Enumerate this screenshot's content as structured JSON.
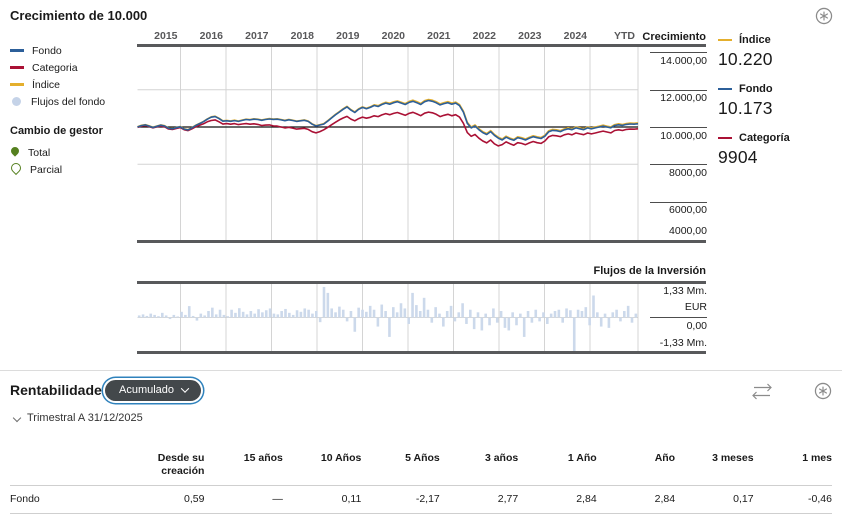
{
  "header": {
    "title": "Crecimiento de 10.000"
  },
  "colors": {
    "fondo": "#2c5f99",
    "categoria": "#aa1135",
    "indice": "#e4af2d",
    "flows": "#ccd9eb",
    "manager_green": "#55801f",
    "frame": "#58595b",
    "grid": "#d4d4d4",
    "baseline": "#111111",
    "pill_bg": "#43484b",
    "pill_ring": "#2f82bc",
    "icon_gray": "#8b8b8b"
  },
  "legend": {
    "items": [
      {
        "label": "Fondo",
        "type": "line",
        "color": "#2c5f99"
      },
      {
        "label": "Categoria",
        "type": "line",
        "color": "#aa1135"
      },
      {
        "label": "Índice",
        "type": "line",
        "color": "#e4af2d"
      },
      {
        "label": "Flujos del fondo",
        "type": "dot",
        "color": "#c5d3e8"
      }
    ],
    "manager_header": "Cambio de gestor",
    "manager_items": [
      {
        "label": "Total",
        "type": "pin-filled"
      },
      {
        "label": "Parcial",
        "type": "pin-hollow"
      }
    ]
  },
  "growth_axis": {
    "header": "Crecimiento",
    "tick_values": [
      14000,
      12000,
      10000,
      8000,
      6000,
      4000
    ],
    "tick_labels": [
      "14.000,00",
      "12.000,00",
      "10.000,00",
      "8000,00",
      "6000,00",
      "4000,00"
    ]
  },
  "summary": [
    {
      "label": "Índice",
      "value": "10.220",
      "color": "#e4af2d"
    },
    {
      "label": "Fondo",
      "value": "10.173",
      "color": "#2c5f99"
    },
    {
      "label": "Categoría",
      "value": "9904",
      "color": "#aa1135"
    }
  ],
  "flows_axis": {
    "header": "Flujos de la Inversión",
    "top": "1,33 Mm.",
    "unit": "EUR",
    "zero": "0,00",
    "bottom": "-1,33 Mm."
  },
  "rentabilidades": {
    "title": "Rentabilidades",
    "dropdown_value": "Acumulado",
    "period_note": "Trimestral A 31/12/2025",
    "table": {
      "columns": [
        "Desde su\ncreación",
        "15 años",
        "10 Años",
        "5 Años",
        "3 años",
        "1 Año",
        "Año",
        "3 meses",
        "1 mes"
      ],
      "rows": [
        {
          "label": "Fondo",
          "values": [
            "0,59",
            "—",
            "0,11",
            "-2,17",
            "2,77",
            "2,84",
            "2,84",
            "0,17",
            "-0,46"
          ]
        }
      ]
    }
  },
  "chart_data": [
    {
      "type": "line",
      "title": "Crecimiento de 10.000",
      "x_labels": [
        "2015",
        "2016",
        "2017",
        "2018",
        "2019",
        "2020",
        "2021",
        "2022",
        "2023",
        "2024",
        "YTD"
      ],
      "x_frequency": "monthly Jan-2015 to Oct-2025",
      "baseline": 10000,
      "ylim": [
        4000,
        14000
      ],
      "grid_values": [
        12000,
        8000
      ],
      "legend_position": "left",
      "series": [
        {
          "name": "Índice",
          "color": "#e4af2d",
          "end_value": 10220,
          "values": [
            10015,
            10090,
            10125,
            10065,
            9990,
            10055,
            10110,
            10070,
            9945,
            9920,
            9975,
            10025,
            9905,
            9860,
            9965,
            10095,
            10195,
            10300,
            10435,
            10545,
            10580,
            10470,
            10330,
            10355,
            10325,
            10365,
            10320,
            10375,
            10420,
            10400,
            10440,
            10420,
            10380,
            10420,
            10450,
            10425,
            10440,
            10400,
            10360,
            10405,
            10370,
            10320,
            10350,
            10380,
            10320,
            10170,
            10075,
            10125,
            10175,
            10330,
            10505,
            10675,
            10825,
            10975,
            11110,
            10935,
            10810,
            10980,
            11080,
            11010,
            11085,
            11190,
            11140,
            11245,
            11325,
            11270,
            11350,
            11400,
            11330,
            11255,
            11370,
            11435,
            11360,
            11260,
            11410,
            11475,
            11435,
            11355,
            11240,
            11310,
            11360,
            11280,
            11335,
            11205,
            10850,
            10250,
            10000,
            10105,
            9905,
            9750,
            9650,
            9805,
            9605,
            9455,
            9355,
            9505,
            9405,
            9335,
            9475,
            9430,
            9355,
            9455,
            9530,
            9475,
            9435,
            9555,
            9800,
            9870,
            9850,
            9805,
            9900,
            9955,
            9905,
            10000,
            9955,
            9905,
            10000,
            9955,
            10000,
            10050,
            10100,
            10050,
            10005,
            10130,
            10170,
            10135,
            10190,
            10210,
            10200,
            10220
          ]
        },
        {
          "name": "Fondo",
          "color": "#2c5f99",
          "end_value": 10173,
          "values": [
            10000,
            10075,
            10110,
            10050,
            9975,
            10040,
            10095,
            10055,
            9930,
            9905,
            9960,
            10010,
            9890,
            9845,
            9950,
            10080,
            10180,
            10285,
            10420,
            10525,
            10560,
            10450,
            10310,
            10335,
            10305,
            10345,
            10300,
            10355,
            10400,
            10380,
            10420,
            10400,
            10360,
            10400,
            10430,
            10405,
            10420,
            10380,
            10340,
            10385,
            10350,
            10300,
            10330,
            10360,
            10300,
            10150,
            10055,
            10105,
            10155,
            10310,
            10480,
            10650,
            10800,
            10950,
            11080,
            10905,
            10780,
            10950,
            11050,
            10980,
            11050,
            11155,
            11100,
            11205,
            11280,
            11225,
            11305,
            11355,
            11280,
            11205,
            11320,
            11380,
            11305,
            11205,
            11355,
            11420,
            11380,
            11300,
            11185,
            11255,
            11305,
            11225,
            11280,
            11150,
            10800,
            10200,
            9950,
            10055,
            9855,
            9700,
            9600,
            9755,
            9555,
            9405,
            9305,
            9455,
            9355,
            9285,
            9425,
            9380,
            9305,
            9405,
            9480,
            9425,
            9385,
            9505,
            9750,
            9820,
            9800,
            9755,
            9850,
            9905,
            9855,
            9950,
            9905,
            9855,
            9950,
            9905,
            9950,
            10000,
            10050,
            10000,
            9955,
            10080,
            10120,
            10085,
            10140,
            10160,
            10150,
            10173
          ]
        },
        {
          "name": "Categoria",
          "color": "#aa1135",
          "end_value": 9904,
          "values": [
            9985,
            10045,
            10080,
            10020,
            9950,
            10005,
            10050,
            10010,
            9895,
            9865,
            9920,
            9970,
            9855,
            9805,
            9900,
            10010,
            10090,
            10170,
            10280,
            10350,
            10380,
            10280,
            10155,
            10180,
            10150,
            10180,
            10130,
            10160,
            10180,
            10150,
            10170,
            10140,
            10080,
            10100,
            10110,
            10060,
            10050,
            10000,
            9950,
            9985,
            9940,
            9890,
            9910,
            9930,
            9870,
            9750,
            9685,
            9755,
            9850,
            9980,
            10120,
            10250,
            10380,
            10480,
            10570,
            10425,
            10330,
            10450,
            10530,
            10470,
            10520,
            10600,
            10560,
            10650,
            10720,
            10660,
            10730,
            10780,
            10700,
            10625,
            10730,
            10790,
            10700,
            10605,
            10740,
            10800,
            10760,
            10680,
            10560,
            10630,
            10680,
            10600,
            10660,
            10530,
            10200,
            9700,
            9500,
            9600,
            9400,
            9250,
            9150,
            9305,
            9100,
            8985,
            9055,
            9200,
            9105,
            9025,
            9160,
            9120,
            9050,
            9150,
            9220,
            9160,
            9120,
            9250,
            9480,
            9550,
            9530,
            9485,
            9580,
            9630,
            9580,
            9680,
            9630,
            9585,
            9680,
            9630,
            9680,
            9730,
            9780,
            9730,
            9685,
            9810,
            9850,
            9815,
            9870,
            9890,
            9880,
            9904
          ]
        }
      ]
    },
    {
      "type": "bar",
      "title": "Flujos de la Inversión",
      "unit": "Mm. EUR",
      "ylim": [
        -1.33,
        1.33
      ],
      "bar_color": "#ccd9eb",
      "values": [
        0.08,
        0.12,
        0.06,
        0.15,
        0.1,
        0.05,
        0.18,
        0.08,
        -0.06,
        0.1,
        0.04,
        0.22,
        0.1,
        0.44,
        0.06,
        -0.12,
        0.15,
        0.08,
        0.25,
        0.38,
        0.12,
        0.3,
        0.1,
        0.05,
        0.3,
        0.18,
        0.36,
        0.22,
        0.12,
        0.25,
        0.15,
        0.32,
        0.2,
        0.28,
        0.35,
        0.15,
        0.12,
        0.25,
        0.33,
        0.18,
        0.1,
        0.28,
        0.22,
        0.35,
        0.3,
        0.15,
        0.25,
        -0.18,
        1.18,
        0.95,
        0.35,
        0.2,
        0.42,
        0.3,
        -0.15,
        0.25,
        -0.55,
        0.38,
        0.3,
        0.22,
        0.45,
        0.3,
        -0.35,
        0.5,
        0.25,
        -0.75,
        0.4,
        0.2,
        0.55,
        0.35,
        -0.25,
        0.95,
        0.48,
        0.25,
        0.76,
        0.3,
        -0.2,
        0.4,
        0.15,
        -0.35,
        0.25,
        0.45,
        -0.15,
        0.2,
        0.55,
        -0.25,
        0.3,
        -0.45,
        0.2,
        -0.5,
        0.15,
        -0.3,
        0.35,
        -0.2,
        0.25,
        -0.4,
        -0.5,
        0.2,
        -0.3,
        0.15,
        -0.75,
        0.25,
        -0.2,
        0.3,
        -0.15,
        0.2,
        -0.25,
        0.15,
        0.25,
        0.3,
        -0.2,
        0.35,
        0.28,
        -1.3,
        0.3,
        0.25,
        0.4,
        -0.3,
        0.85,
        0.2,
        -0.35,
        0.15,
        -0.4,
        0.2,
        0.3,
        -0.15,
        0.25,
        0.45,
        -0.2,
        0.15
      ]
    }
  ]
}
